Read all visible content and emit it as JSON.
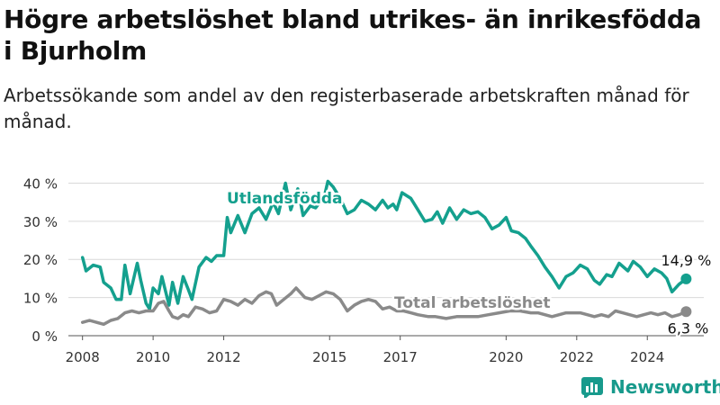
{
  "title": "Högre arbetslöshet bland utrikes- än inrikesfödda i Bjurholm",
  "subtitle": "Arbetssökande som andel av den registerbaserade arbetskraften månad för månad.",
  "brand": "Newsworthy",
  "colors": {
    "foreign": "#14a08e",
    "total": "#8a8a8a",
    "brand": "#189a8c",
    "grid": "#d9d9d9",
    "axis": "#555555"
  },
  "chart_data": {
    "type": "line",
    "title": "",
    "xlabel": "",
    "ylabel": "",
    "x_ticks": [
      "2008",
      "2010",
      "2012",
      "2015",
      "2017",
      "2020",
      "2022",
      "2024"
    ],
    "x_tick_years": [
      2008,
      2010,
      2012,
      2015,
      2017,
      2020,
      2022,
      2024
    ],
    "y_ticks": [
      "0 %",
      "10 %",
      "20 %",
      "30 %",
      "40 %"
    ],
    "y_tick_values": [
      0,
      10,
      20,
      30,
      40
    ],
    "xlim": [
      2007.6,
      2025.6
    ],
    "ylim": [
      0,
      42
    ],
    "grid": true,
    "series": [
      {
        "name": "Utlandsfödda",
        "color_key": "foreign",
        "end_label": "14,9 %",
        "points": [
          [
            2008.0,
            20.5
          ],
          [
            2008.1,
            17.0
          ],
          [
            2008.3,
            18.5
          ],
          [
            2008.5,
            18.0
          ],
          [
            2008.6,
            14.0
          ],
          [
            2008.8,
            12.5
          ],
          [
            2008.95,
            9.5
          ],
          [
            2009.1,
            9.5
          ],
          [
            2009.2,
            18.5
          ],
          [
            2009.35,
            11.0
          ],
          [
            2009.55,
            19.0
          ],
          [
            2009.65,
            14.5
          ],
          [
            2009.8,
            8.5
          ],
          [
            2009.9,
            7.0
          ],
          [
            2010.0,
            12.5
          ],
          [
            2010.15,
            11.0
          ],
          [
            2010.25,
            15.5
          ],
          [
            2010.45,
            8.0
          ],
          [
            2010.55,
            14.0
          ],
          [
            2010.7,
            8.5
          ],
          [
            2010.85,
            15.5
          ],
          [
            2011.0,
            12.0
          ],
          [
            2011.1,
            9.5
          ],
          [
            2011.3,
            18.0
          ],
          [
            2011.5,
            20.5
          ],
          [
            2011.65,
            19.5
          ],
          [
            2011.8,
            21.0
          ],
          [
            2012.0,
            21.0
          ],
          [
            2012.1,
            31.0
          ],
          [
            2012.2,
            27.0
          ],
          [
            2012.4,
            31.5
          ],
          [
            2012.6,
            27.0
          ],
          [
            2012.8,
            32.0
          ],
          [
            2013.0,
            33.5
          ],
          [
            2013.2,
            30.5
          ],
          [
            2013.4,
            35.0
          ],
          [
            2013.55,
            32.0
          ],
          [
            2013.75,
            40.0
          ],
          [
            2013.9,
            33.0
          ],
          [
            2014.1,
            38.5
          ],
          [
            2014.25,
            31.5
          ],
          [
            2014.45,
            34.0
          ],
          [
            2014.6,
            33.5
          ],
          [
            2014.85,
            36.5
          ],
          [
            2014.95,
            40.5
          ],
          [
            2015.1,
            39.0
          ],
          [
            2015.3,
            36.0
          ],
          [
            2015.5,
            32.0
          ],
          [
            2015.7,
            33.0
          ],
          [
            2015.9,
            35.5
          ],
          [
            2016.1,
            34.5
          ],
          [
            2016.3,
            33.0
          ],
          [
            2016.5,
            35.5
          ],
          [
            2016.65,
            33.5
          ],
          [
            2016.8,
            34.5
          ],
          [
            2016.9,
            33.0
          ],
          [
            2017.05,
            37.5
          ],
          [
            2017.3,
            36.0
          ],
          [
            2017.5,
            33.0
          ],
          [
            2017.7,
            30.0
          ],
          [
            2017.9,
            30.5
          ],
          [
            2018.05,
            32.5
          ],
          [
            2018.2,
            29.5
          ],
          [
            2018.4,
            33.5
          ],
          [
            2018.6,
            30.5
          ],
          [
            2018.8,
            33.0
          ],
          [
            2019.0,
            32.0
          ],
          [
            2019.2,
            32.5
          ],
          [
            2019.4,
            31.0
          ],
          [
            2019.6,
            28.0
          ],
          [
            2019.8,
            29.0
          ],
          [
            2020.0,
            31.0
          ],
          [
            2020.15,
            27.5
          ],
          [
            2020.35,
            27.0
          ],
          [
            2020.55,
            25.5
          ],
          [
            2020.7,
            23.5
          ],
          [
            2020.9,
            21.0
          ],
          [
            2021.1,
            18.0
          ],
          [
            2021.3,
            15.5
          ],
          [
            2021.5,
            12.5
          ],
          [
            2021.7,
            15.5
          ],
          [
            2021.9,
            16.5
          ],
          [
            2022.1,
            18.5
          ],
          [
            2022.3,
            17.5
          ],
          [
            2022.5,
            14.5
          ],
          [
            2022.65,
            13.5
          ],
          [
            2022.85,
            16.0
          ],
          [
            2023.0,
            15.5
          ],
          [
            2023.2,
            19.0
          ],
          [
            2023.45,
            17.0
          ],
          [
            2023.6,
            19.5
          ],
          [
            2023.8,
            18.0
          ],
          [
            2024.0,
            15.5
          ],
          [
            2024.2,
            17.5
          ],
          [
            2024.4,
            16.5
          ],
          [
            2024.55,
            15.0
          ],
          [
            2024.7,
            11.5
          ],
          [
            2024.9,
            13.5
          ],
          [
            2025.1,
            14.9
          ]
        ]
      },
      {
        "name": "Total arbetslöshet",
        "color_key": "total",
        "end_label": "6,3 %",
        "points": [
          [
            2008.0,
            3.5
          ],
          [
            2008.2,
            4.0
          ],
          [
            2008.4,
            3.5
          ],
          [
            2008.6,
            3.0
          ],
          [
            2008.8,
            4.0
          ],
          [
            2009.0,
            4.5
          ],
          [
            2009.2,
            6.0
          ],
          [
            2009.4,
            6.5
          ],
          [
            2009.6,
            6.0
          ],
          [
            2009.8,
            6.5
          ],
          [
            2010.0,
            6.5
          ],
          [
            2010.15,
            8.5
          ],
          [
            2010.3,
            9.0
          ],
          [
            2010.45,
            6.5
          ],
          [
            2010.55,
            5.0
          ],
          [
            2010.7,
            4.5
          ],
          [
            2010.85,
            5.5
          ],
          [
            2011.0,
            5.0
          ],
          [
            2011.2,
            7.5
          ],
          [
            2011.4,
            7.0
          ],
          [
            2011.6,
            6.0
          ],
          [
            2011.8,
            6.5
          ],
          [
            2012.0,
            9.5
          ],
          [
            2012.2,
            9.0
          ],
          [
            2012.4,
            8.0
          ],
          [
            2012.6,
            9.5
          ],
          [
            2012.8,
            8.5
          ],
          [
            2013.0,
            10.5
          ],
          [
            2013.2,
            11.5
          ],
          [
            2013.35,
            11.0
          ],
          [
            2013.5,
            8.0
          ],
          [
            2013.7,
            9.5
          ],
          [
            2013.9,
            11.0
          ],
          [
            2014.05,
            12.5
          ],
          [
            2014.3,
            10.0
          ],
          [
            2014.5,
            9.5
          ],
          [
            2014.7,
            10.5
          ],
          [
            2014.9,
            11.5
          ],
          [
            2015.1,
            11.0
          ],
          [
            2015.3,
            9.5
          ],
          [
            2015.5,
            6.5
          ],
          [
            2015.7,
            8.0
          ],
          [
            2015.9,
            9.0
          ],
          [
            2016.1,
            9.5
          ],
          [
            2016.3,
            9.0
          ],
          [
            2016.5,
            7.0
          ],
          [
            2016.7,
            7.5
          ],
          [
            2016.9,
            6.5
          ],
          [
            2017.1,
            6.5
          ],
          [
            2017.3,
            6.0
          ],
          [
            2017.5,
            5.5
          ],
          [
            2017.8,
            5.0
          ],
          [
            2018.0,
            5.0
          ],
          [
            2018.3,
            4.5
          ],
          [
            2018.6,
            5.0
          ],
          [
            2018.9,
            5.0
          ],
          [
            2019.2,
            5.0
          ],
          [
            2019.5,
            5.5
          ],
          [
            2019.8,
            6.0
          ],
          [
            2020.1,
            6.5
          ],
          [
            2020.4,
            6.5
          ],
          [
            2020.7,
            6.0
          ],
          [
            2020.9,
            6.0
          ],
          [
            2021.1,
            5.5
          ],
          [
            2021.3,
            5.0
          ],
          [
            2021.5,
            5.5
          ],
          [
            2021.7,
            6.0
          ],
          [
            2021.9,
            6.0
          ],
          [
            2022.1,
            6.0
          ],
          [
            2022.3,
            5.5
          ],
          [
            2022.5,
            5.0
          ],
          [
            2022.7,
            5.5
          ],
          [
            2022.9,
            5.0
          ],
          [
            2023.1,
            6.5
          ],
          [
            2023.3,
            6.0
          ],
          [
            2023.5,
            5.5
          ],
          [
            2023.7,
            5.0
          ],
          [
            2023.9,
            5.5
          ],
          [
            2024.1,
            6.0
          ],
          [
            2024.3,
            5.5
          ],
          [
            2024.5,
            6.0
          ],
          [
            2024.7,
            5.0
          ],
          [
            2024.9,
            5.5
          ],
          [
            2025.1,
            6.3
          ]
        ]
      }
    ]
  }
}
